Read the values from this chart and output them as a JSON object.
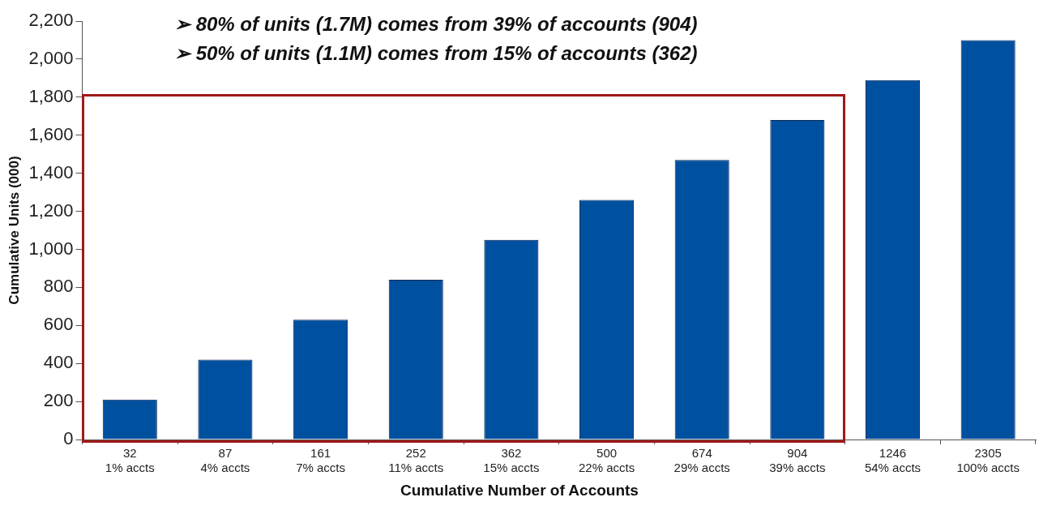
{
  "chart_data": {
    "type": "bar",
    "xlabel": "Cumulative Number of Accounts",
    "ylabel": "Cumulative Units (000)",
    "categories": [
      "32\n1% accts",
      "87\n4% accts",
      "161\n7% accts",
      "252\n11% accts",
      "362\n15% accts",
      "500\n22% accts",
      "674\n29% accts",
      "904\n39% accts",
      "1246\n54% accts",
      "2305\n100% accts"
    ],
    "values": [
      210,
      420,
      630,
      840,
      1050,
      1260,
      1470,
      1680,
      1890,
      2100
    ],
    "color": "#0050a0",
    "ylim": [
      0,
      2200
    ],
    "yticks": [
      {
        "value": 0,
        "label": "0"
      },
      {
        "value": 200,
        "label": "200"
      },
      {
        "value": 400,
        "label": "400"
      },
      {
        "value": 600,
        "label": "600"
      },
      {
        "value": 800,
        "label": "800"
      },
      {
        "value": 1000,
        "label": "1,000"
      },
      {
        "value": 1200,
        "label": "1,200"
      },
      {
        "value": 1400,
        "label": "1,400"
      },
      {
        "value": 1600,
        "label": "1,600"
      },
      {
        "value": 1800,
        "label": "1,800"
      },
      {
        "value": 2000,
        "label": "2,000"
      },
      {
        "value": 2200,
        "label": "2,200"
      }
    ],
    "grid": false,
    "legend": false,
    "annotations": [
      "➢ 80% of units (1.7M) comes from 39% of accounts (904)",
      "➢ 50% of units (1.1M) comes from 15% of accounts (362)"
    ]
  }
}
